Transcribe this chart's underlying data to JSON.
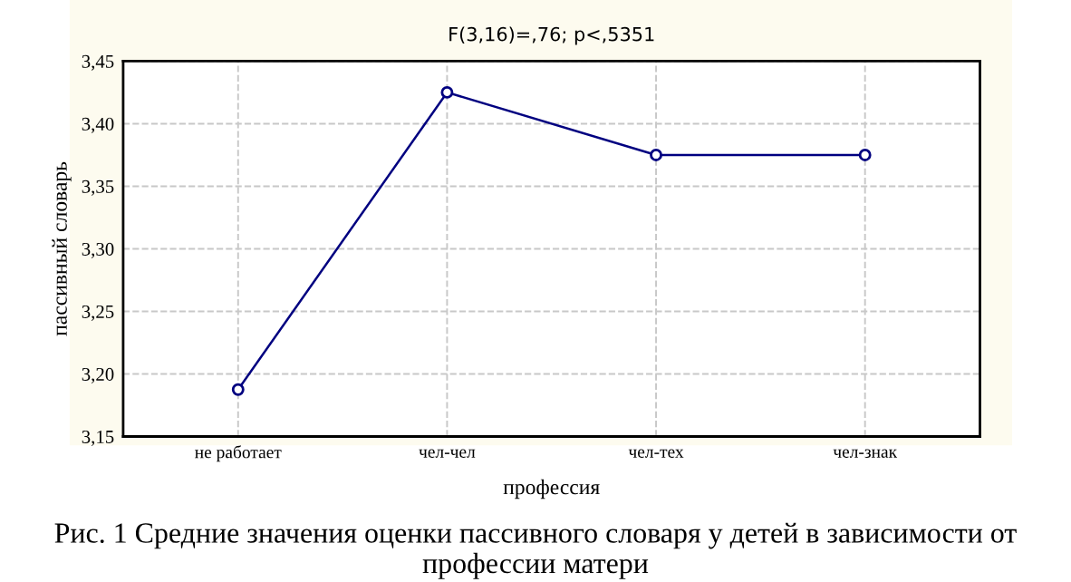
{
  "chart_data": {
    "type": "line",
    "title": "F(3,16)=,76; p<,5351",
    "xlabel": "профессия",
    "ylabel": "пассивный словарь",
    "categories": [
      "не работает",
      "чел-чел",
      "чел-тех",
      "чел-знак"
    ],
    "series": [
      {
        "color": "#000080",
        "values": [
          3.1875,
          3.425,
          3.375,
          3.375
        ]
      }
    ],
    "ylim": [
      3.15,
      3.45
    ],
    "yticks": [
      {
        "value": 3.15,
        "label": "3,15"
      },
      {
        "value": 3.2,
        "label": "3,20"
      },
      {
        "value": 3.25,
        "label": "3,25"
      },
      {
        "value": 3.3,
        "label": "3,30"
      },
      {
        "value": 3.35,
        "label": "3,35"
      },
      {
        "value": 3.4,
        "label": "3,40"
      },
      {
        "value": 3.45,
        "label": "3,45"
      }
    ],
    "grid": true,
    "marker": "circle",
    "line_style": "solid",
    "annotations": [
      "Рис. 1 Средние значения оценки пассивного словаря у детей в зависимости от профессии матери"
    ]
  }
}
